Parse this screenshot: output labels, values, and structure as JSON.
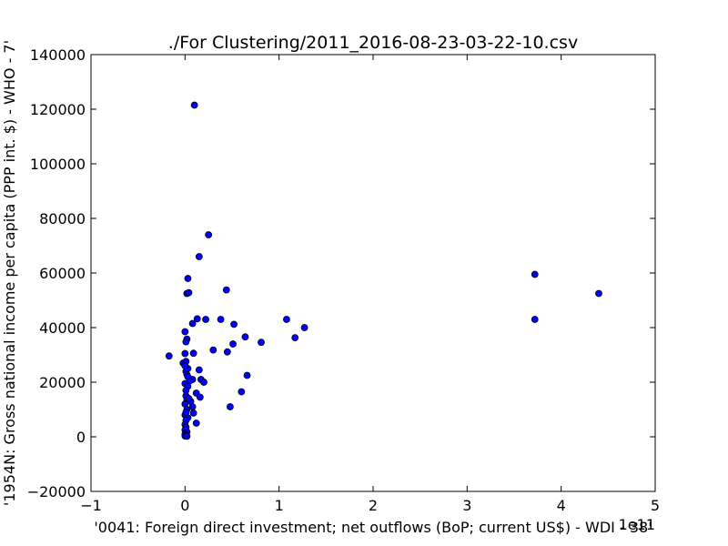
{
  "chart_data": {
    "type": "scatter",
    "title": "./For Clustering/2011_2016-08-23-03-22-10.csv",
    "xlabel": "'0041: Foreign direct investment; net outflows  (BoP; current US$) - WDI - 38'",
    "ylabel": "'1954N: Gross national income per capita (PPP int. $) - WHO - 7'",
    "x_offset_label": "1e11",
    "xlim": [
      -1,
      5
    ],
    "ylim": [
      -20000,
      140000
    ],
    "x_ticks": [
      -1,
      0,
      1,
      2,
      3,
      4,
      5
    ],
    "x_tick_labels": [
      "−1",
      "0",
      "1",
      "2",
      "3",
      "4",
      "5"
    ],
    "y_ticks": [
      -20000,
      0,
      20000,
      40000,
      60000,
      80000,
      100000,
      120000,
      140000
    ],
    "y_tick_labels": [
      "−20000",
      "0",
      "20000",
      "40000",
      "60000",
      "80000",
      "100000",
      "120000",
      "140000"
    ],
    "grid": false,
    "marker_color": "#0000ff",
    "marker_edge_color": "#000000",
    "points": [
      [
        0.1,
        121500
      ],
      [
        0.25,
        74000
      ],
      [
        0.15,
        66000
      ],
      [
        0.03,
        58000
      ],
      [
        0.02,
        52500
      ],
      [
        0.04,
        52800
      ],
      [
        0.44,
        53800
      ],
      [
        3.72,
        59500
      ],
      [
        4.4,
        52500
      ],
      [
        3.72,
        43000
      ],
      [
        1.08,
        43000
      ],
      [
        1.27,
        40000
      ],
      [
        0.13,
        43200
      ],
      [
        0.22,
        43000
      ],
      [
        0.38,
        43000
      ],
      [
        0.08,
        41500
      ],
      [
        0.52,
        41200
      ],
      [
        1.17,
        36300
      ],
      [
        0.64,
        36600
      ],
      [
        0.81,
        34600
      ],
      [
        0.51,
        34000
      ],
      [
        0.3,
        31800
      ],
      [
        0.45,
        31100
      ],
      [
        0.09,
        30600
      ],
      [
        -0.17,
        29600
      ],
      [
        0.0,
        38500
      ],
      [
        0.02,
        35800
      ],
      [
        0.01,
        34800
      ],
      [
        -0.02,
        27000
      ],
      [
        0.01,
        27600
      ],
      [
        0.0,
        30500
      ],
      [
        0.15,
        24500
      ],
      [
        0.01,
        24000
      ],
      [
        0.03,
        25000
      ],
      [
        0.02,
        22800
      ],
      [
        0.17,
        21000
      ],
      [
        0.2,
        20000
      ],
      [
        0.66,
        22500
      ],
      [
        0.08,
        21000
      ],
      [
        0.05,
        20500
      ],
      [
        0.0,
        19500
      ],
      [
        0.03,
        18500
      ],
      [
        0.01,
        17000
      ],
      [
        0.6,
        16500
      ],
      [
        0.12,
        16000
      ],
      [
        0.16,
        14500
      ],
      [
        0.01,
        15000
      ],
      [
        0.02,
        13500
      ],
      [
        0.06,
        13000
      ],
      [
        0.0,
        12000
      ],
      [
        0.08,
        11000
      ],
      [
        0.48,
        11000
      ],
      [
        0.02,
        10000
      ],
      [
        0.09,
        8700
      ],
      [
        0.0,
        8000
      ],
      [
        0.03,
        7000
      ],
      [
        0.01,
        6000
      ],
      [
        0.12,
        5000
      ],
      [
        0.0,
        4500
      ],
      [
        0.01,
        3500
      ],
      [
        0.0,
        2500
      ],
      [
        0.02,
        1800
      ],
      [
        0.0,
        1000
      ],
      [
        0.01,
        600
      ],
      [
        0.0,
        300
      ],
      [
        0.02,
        200
      ],
      [
        0.03,
        22000
      ],
      [
        0.01,
        9000
      ],
      [
        0.04,
        14000
      ],
      [
        0.0,
        26000
      ]
    ]
  }
}
